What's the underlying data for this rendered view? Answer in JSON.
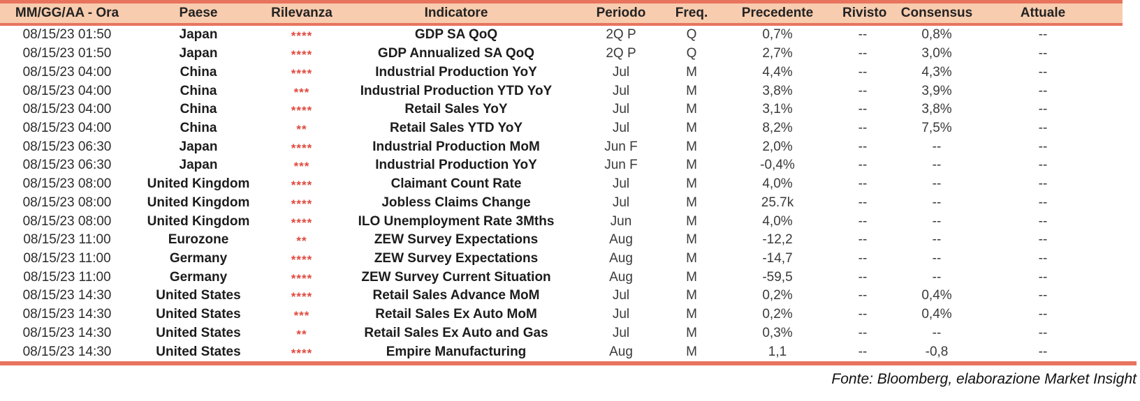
{
  "chart_data": {
    "type": "table",
    "columns": [
      "MM/GG/AA - Ora",
      "Paese",
      "Rilevanza",
      "Indicatore",
      "Periodo",
      "Freq.",
      "Precedente",
      "Rivisto",
      "Consensus",
      "Attuale"
    ],
    "relevance_symbol": "*",
    "rows": [
      {
        "date": "08/15/23 01:50",
        "country": "Japan",
        "relevance": 4,
        "indicator": "GDP SA QoQ",
        "period": "2Q P",
        "freq": "Q",
        "previous": "0,7%",
        "revised": "--",
        "consensus": "0,8%",
        "actual": "--"
      },
      {
        "date": "08/15/23 01:50",
        "country": "Japan",
        "relevance": 4,
        "indicator": "GDP Annualized SA QoQ",
        "period": "2Q P",
        "freq": "Q",
        "previous": "2,7%",
        "revised": "--",
        "consensus": "3,0%",
        "actual": "--"
      },
      {
        "date": "08/15/23 04:00",
        "country": "China",
        "relevance": 4,
        "indicator": "Industrial Production YoY",
        "period": "Jul",
        "freq": "M",
        "previous": "4,4%",
        "revised": "--",
        "consensus": "4,3%",
        "actual": "--"
      },
      {
        "date": "08/15/23 04:00",
        "country": "China",
        "relevance": 3,
        "indicator": "Industrial Production YTD YoY",
        "period": "Jul",
        "freq": "M",
        "previous": "3,8%",
        "revised": "--",
        "consensus": "3,9%",
        "actual": "--"
      },
      {
        "date": "08/15/23 04:00",
        "country": "China",
        "relevance": 4,
        "indicator": "Retail Sales YoY",
        "period": "Jul",
        "freq": "M",
        "previous": "3,1%",
        "revised": "--",
        "consensus": "3,8%",
        "actual": "--"
      },
      {
        "date": "08/15/23 04:00",
        "country": "China",
        "relevance": 2,
        "indicator": "Retail Sales YTD YoY",
        "period": "Jul",
        "freq": "M",
        "previous": "8,2%",
        "revised": "--",
        "consensus": "7,5%",
        "actual": "--"
      },
      {
        "date": "08/15/23 06:30",
        "country": "Japan",
        "relevance": 4,
        "indicator": "Industrial Production MoM",
        "period": "Jun F",
        "freq": "M",
        "previous": "2,0%",
        "revised": "--",
        "consensus": "--",
        "actual": "--"
      },
      {
        "date": "08/15/23 06:30",
        "country": "Japan",
        "relevance": 3,
        "indicator": "Industrial Production YoY",
        "period": "Jun F",
        "freq": "M",
        "previous": "-0,4%",
        "revised": "--",
        "consensus": "--",
        "actual": "--"
      },
      {
        "date": "08/15/23 08:00",
        "country": "United Kingdom",
        "relevance": 4,
        "indicator": "Claimant Count Rate",
        "period": "Jul",
        "freq": "M",
        "previous": "4,0%",
        "revised": "--",
        "consensus": "--",
        "actual": "--"
      },
      {
        "date": "08/15/23 08:00",
        "country": "United Kingdom",
        "relevance": 4,
        "indicator": "Jobless Claims Change",
        "period": "Jul",
        "freq": "M",
        "previous": "25.7k",
        "revised": "--",
        "consensus": "--",
        "actual": "--"
      },
      {
        "date": "08/15/23 08:00",
        "country": "United Kingdom",
        "relevance": 4,
        "indicator": "ILO Unemployment Rate 3Mths",
        "period": "Jun",
        "freq": "M",
        "previous": "4,0%",
        "revised": "--",
        "consensus": "--",
        "actual": "--"
      },
      {
        "date": "08/15/23 11:00",
        "country": "Eurozone",
        "relevance": 2,
        "indicator": "ZEW Survey Expectations",
        "period": "Aug",
        "freq": "M",
        "previous": "-12,2",
        "revised": "--",
        "consensus": "--",
        "actual": "--"
      },
      {
        "date": "08/15/23 11:00",
        "country": "Germany",
        "relevance": 4,
        "indicator": "ZEW Survey Expectations",
        "period": "Aug",
        "freq": "M",
        "previous": "-14,7",
        "revised": "--",
        "consensus": "--",
        "actual": "--"
      },
      {
        "date": "08/15/23 11:00",
        "country": "Germany",
        "relevance": 4,
        "indicator": "ZEW Survey Current Situation",
        "period": "Aug",
        "freq": "M",
        "previous": "-59,5",
        "revised": "--",
        "consensus": "--",
        "actual": "--"
      },
      {
        "date": "08/15/23 14:30",
        "country": "United States",
        "relevance": 4,
        "indicator": "Retail Sales Advance MoM",
        "period": "Jul",
        "freq": "M",
        "previous": "0,2%",
        "revised": "--",
        "consensus": "0,4%",
        "actual": "--"
      },
      {
        "date": "08/15/23 14:30",
        "country": "United States",
        "relevance": 3,
        "indicator": "Retail Sales Ex Auto MoM",
        "period": "Jul",
        "freq": "M",
        "previous": "0,2%",
        "revised": "--",
        "consensus": "0,4%",
        "actual": "--"
      },
      {
        "date": "08/15/23 14:30",
        "country": "United States",
        "relevance": 2,
        "indicator": "Retail Sales Ex Auto and Gas",
        "period": "Jul",
        "freq": "M",
        "previous": "0,3%",
        "revised": "--",
        "consensus": "--",
        "actual": "--"
      },
      {
        "date": "08/15/23 14:30",
        "country": "United States",
        "relevance": 4,
        "indicator": "Empire Manufacturing",
        "period": "Aug",
        "freq": "M",
        "previous": "1,1",
        "revised": "--",
        "consensus": "-0,8",
        "actual": "--"
      }
    ],
    "footer": "Fonte: Bloomberg, elaborazione Market Insight",
    "layout": {
      "grid": "off",
      "header_position": "top",
      "row_count": 18
    }
  },
  "colors": {
    "header_bg": "#F8CCAE",
    "rule": "#E8745E",
    "relevance_star": "#E0493E",
    "text": "#222222"
  }
}
